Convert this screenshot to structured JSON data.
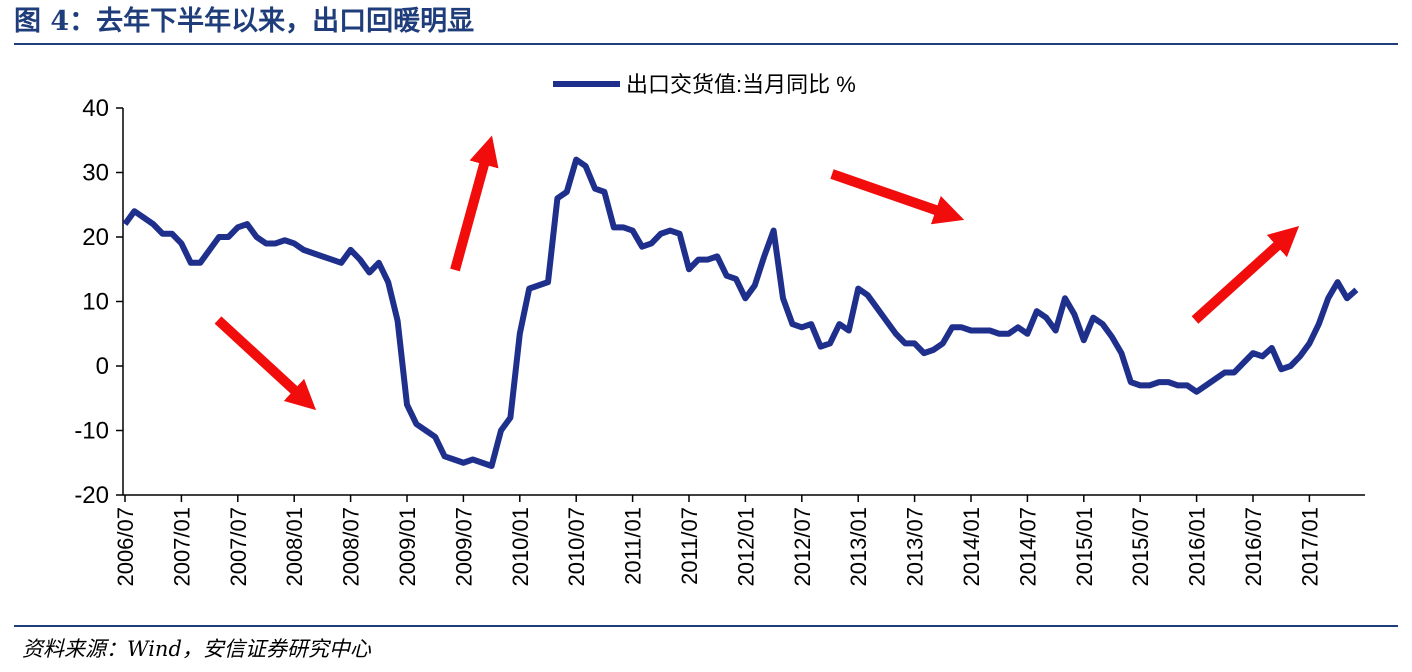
{
  "title": "图 4：去年下半年以来，出口回暖明显",
  "source": "资料来源：Wind，安信证券研究中心",
  "chart_data": {
    "type": "line",
    "categories": [
      "2006/07",
      null,
      null,
      null,
      null,
      null,
      "2007/01",
      null,
      null,
      null,
      null,
      null,
      "2007/07",
      null,
      null,
      null,
      null,
      null,
      "2008/01",
      null,
      null,
      null,
      null,
      null,
      "2008/07",
      null,
      null,
      null,
      null,
      null,
      "2009/01",
      null,
      null,
      null,
      null,
      null,
      "2009/07",
      null,
      null,
      null,
      null,
      null,
      "2010/01",
      null,
      null,
      null,
      null,
      null,
      "2010/07",
      null,
      null,
      null,
      null,
      null,
      "2011/01",
      null,
      null,
      null,
      null,
      null,
      "2011/07",
      null,
      null,
      null,
      null,
      null,
      "2012/01",
      null,
      null,
      null,
      null,
      null,
      "2012/07",
      null,
      null,
      null,
      null,
      null,
      "2013/01",
      null,
      null,
      null,
      null,
      null,
      "2013/07",
      null,
      null,
      null,
      null,
      null,
      "2014/01",
      null,
      null,
      null,
      null,
      null,
      "2014/07",
      null,
      null,
      null,
      null,
      null,
      "2015/01",
      null,
      null,
      null,
      null,
      null,
      "2015/07",
      null,
      null,
      null,
      null,
      null,
      "2016/01",
      null,
      null,
      null,
      null,
      null,
      "2016/07",
      null,
      null,
      null,
      null,
      null,
      "2017/01",
      null,
      null,
      null,
      null,
      null
    ],
    "series": [
      {
        "name": "出口交货值:当月同比 %",
        "color": "#1f2f8c",
        "values": [
          22,
          24,
          23,
          22,
          20.5,
          20.5,
          19,
          16,
          16,
          18,
          20,
          20,
          21.5,
          22,
          20,
          19,
          19,
          19.5,
          19,
          18,
          17.5,
          17,
          16.5,
          16,
          18,
          16.5,
          14.5,
          16,
          13,
          7,
          -6,
          -9,
          -10,
          -11,
          -14,
          -14.5,
          -15,
          -14.5,
          -15,
          -15.5,
          -10,
          -8,
          5,
          12,
          12.5,
          13,
          26,
          27,
          32,
          31,
          27.5,
          27,
          21.5,
          21.5,
          21,
          18.5,
          19,
          20.5,
          21,
          20.5,
          15,
          16.5,
          16.5,
          17,
          14,
          13.5,
          10.5,
          12.5,
          17,
          21,
          10.5,
          6.5,
          6,
          6.5,
          3,
          3.5,
          6.5,
          5.5,
          12,
          11,
          9,
          7,
          5,
          3.5,
          3.5,
          2,
          2.5,
          3.5,
          6,
          6,
          5.5,
          5.5,
          5.5,
          5,
          5,
          6,
          5,
          8.5,
          7.5,
          5.5,
          10.5,
          8,
          4,
          7.5,
          6.5,
          4.5,
          2,
          -2.5,
          -3,
          -3,
          -2.5,
          -2.5,
          -3,
          -3,
          -4,
          -3,
          -2,
          -1,
          -1,
          0.5,
          2,
          1.5,
          2.8,
          -0.5,
          0,
          1.5,
          3.5,
          6.5,
          10.5,
          13,
          10.5,
          11.8
        ]
      }
    ],
    "ylim": [
      -20,
      40
    ],
    "yticks": [
      -20,
      -10,
      0,
      10,
      20,
      30,
      40
    ],
    "legend": "top"
  }
}
